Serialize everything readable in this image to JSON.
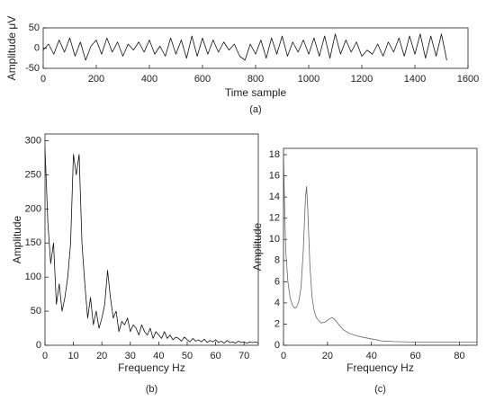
{
  "chart_data": [
    {
      "type": "line",
      "caption": "(a)",
      "xlabel": "Time sample",
      "ylabel": "Amplitude μV",
      "xlim": [
        0,
        1600
      ],
      "xticks": [
        0,
        200,
        400,
        600,
        800,
        1000,
        1200,
        1400,
        1600
      ],
      "ylim": [
        -50,
        50
      ],
      "yticks": [
        -50,
        0,
        50
      ],
      "color": "#111111",
      "x": [
        0,
        20,
        40,
        60,
        80,
        100,
        120,
        140,
        160,
        180,
        200,
        220,
        240,
        260,
        280,
        300,
        320,
        340,
        360,
        380,
        400,
        420,
        440,
        460,
        480,
        500,
        520,
        540,
        560,
        580,
        600,
        620,
        640,
        660,
        680,
        700,
        720,
        740,
        760,
        780,
        800,
        820,
        840,
        860,
        880,
        900,
        920,
        940,
        960,
        980,
        1000,
        1020,
        1040,
        1060,
        1080,
        1100,
        1120,
        1140,
        1160,
        1180,
        1200,
        1220,
        1240,
        1260,
        1280,
        1300,
        1320,
        1340,
        1360,
        1380,
        1400,
        1420,
        1440,
        1460,
        1480,
        1500,
        1520
      ],
      "values": [
        -5,
        10,
        -15,
        20,
        -10,
        25,
        -20,
        15,
        -30,
        5,
        20,
        -15,
        25,
        -10,
        15,
        -20,
        10,
        -5,
        15,
        -10,
        20,
        -15,
        5,
        -20,
        25,
        -15,
        20,
        -25,
        30,
        -20,
        25,
        -15,
        20,
        -10,
        15,
        -5,
        10,
        -20,
        -30,
        10,
        -15,
        20,
        -25,
        25,
        -15,
        30,
        -20,
        15,
        -10,
        20,
        -15,
        25,
        -20,
        30,
        -25,
        35,
        -15,
        20,
        -10,
        15,
        -20,
        -5,
        -15,
        10,
        -20,
        15,
        -10,
        25,
        -20,
        30,
        -15,
        35,
        -25,
        30,
        -20,
        35,
        -30
      ]
    },
    {
      "type": "line",
      "caption": "(b)",
      "xlabel": "Frequency Hz",
      "ylabel": "Amplitude",
      "xlim": [
        0,
        75
      ],
      "xticks": [
        0,
        10,
        20,
        30,
        40,
        50,
        60,
        70
      ],
      "ylim": [
        0,
        310
      ],
      "yticks": [
        0,
        50,
        100,
        150,
        200,
        250,
        300
      ],
      "color": "#111111",
      "x": [
        0,
        1,
        2,
        3,
        4,
        5,
        6,
        7,
        8,
        9,
        10,
        11,
        12,
        13,
        14,
        15,
        16,
        17,
        18,
        19,
        20,
        21,
        22,
        23,
        24,
        25,
        26,
        27,
        28,
        29,
        30,
        31,
        32,
        33,
        34,
        35,
        36,
        37,
        38,
        39,
        40,
        41,
        42,
        43,
        44,
        45,
        46,
        47,
        48,
        49,
        50,
        51,
        52,
        53,
        54,
        55,
        56,
        57,
        58,
        59,
        60,
        61,
        62,
        63,
        64,
        65,
        66,
        67,
        68,
        69,
        70,
        71,
        72,
        73,
        74,
        75
      ],
      "values": [
        290,
        180,
        120,
        150,
        60,
        90,
        50,
        70,
        100,
        150,
        280,
        250,
        280,
        150,
        90,
        40,
        70,
        30,
        50,
        25,
        40,
        60,
        110,
        70,
        40,
        50,
        20,
        35,
        30,
        40,
        20,
        30,
        25,
        15,
        30,
        20,
        15,
        25,
        10,
        20,
        15,
        10,
        20,
        10,
        15,
        8,
        12,
        10,
        6,
        12,
        8,
        5,
        10,
        6,
        8,
        5,
        9,
        4,
        7,
        5,
        8,
        4,
        6,
        3,
        7,
        4,
        5,
        3,
        6,
        4,
        5,
        3,
        5,
        4,
        5,
        3
      ]
    },
    {
      "type": "line",
      "caption": "(c)",
      "xlabel": "Frequency Hz",
      "ylabel": "Amplitude",
      "xlim": [
        0,
        88
      ],
      "xticks": [
        0,
        20,
        40,
        60,
        80
      ],
      "ylim": [
        0,
        18.6
      ],
      "yticks": [
        0,
        2,
        4,
        6,
        8,
        10,
        12,
        14,
        16,
        18
      ],
      "color": "#666666",
      "x": [
        0,
        1,
        2,
        3,
        4,
        5,
        6,
        7,
        8,
        9,
        10,
        10.5,
        11,
        12,
        13,
        14,
        15,
        17,
        19,
        21,
        22,
        23,
        25,
        27,
        30,
        35,
        40,
        45,
        50,
        60,
        70,
        80,
        88
      ],
      "values": [
        17.5,
        9,
        6,
        4.5,
        3.8,
        3.5,
        3.6,
        4.2,
        5.5,
        9,
        14,
        15,
        13,
        7.5,
        4.5,
        3.2,
        2.6,
        2.1,
        2.2,
        2.5,
        2.6,
        2.5,
        2,
        1.5,
        1.1,
        0.8,
        0.6,
        0.4,
        0.35,
        0.3,
        0.3,
        0.3,
        0.3
      ]
    }
  ]
}
